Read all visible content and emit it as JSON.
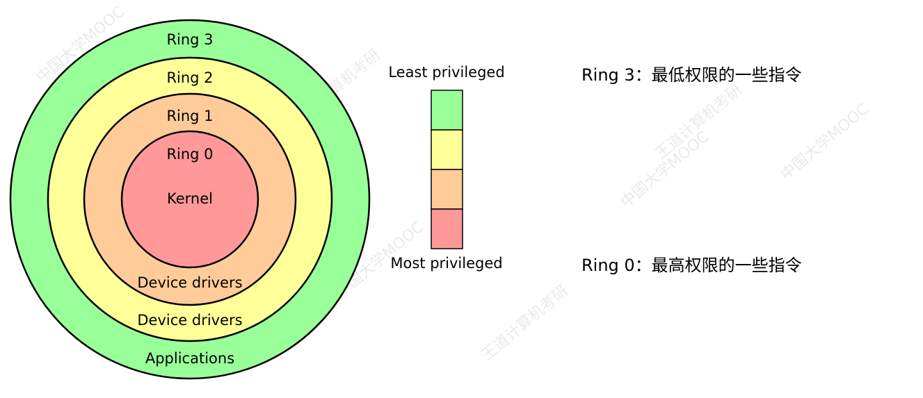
{
  "diagram": {
    "rings": [
      {
        "label": "Ring 3",
        "content": "Applications",
        "color": "#99ff99"
      },
      {
        "label": "Ring 2",
        "content": "Device drivers",
        "color": "#ffff99"
      },
      {
        "label": "Ring 1",
        "content": "Device drivers",
        "color": "#ffcc99"
      },
      {
        "label": "Ring 0",
        "content": "Kernel",
        "color": "#ff9999"
      }
    ],
    "legend": {
      "top_label": "Least privileged",
      "bottom_label": "Most privileged",
      "colors": [
        "#99ff99",
        "#ffff99",
        "#ffcc99",
        "#ff9999"
      ]
    }
  },
  "notes": {
    "ring3": "Ring 3：最低权限的一些指令",
    "ring0": "Ring 0：最高权限的一些指令"
  },
  "watermark": {
    "texts": [
      "中国大学MOOC",
      "王道计算机考研"
    ]
  }
}
